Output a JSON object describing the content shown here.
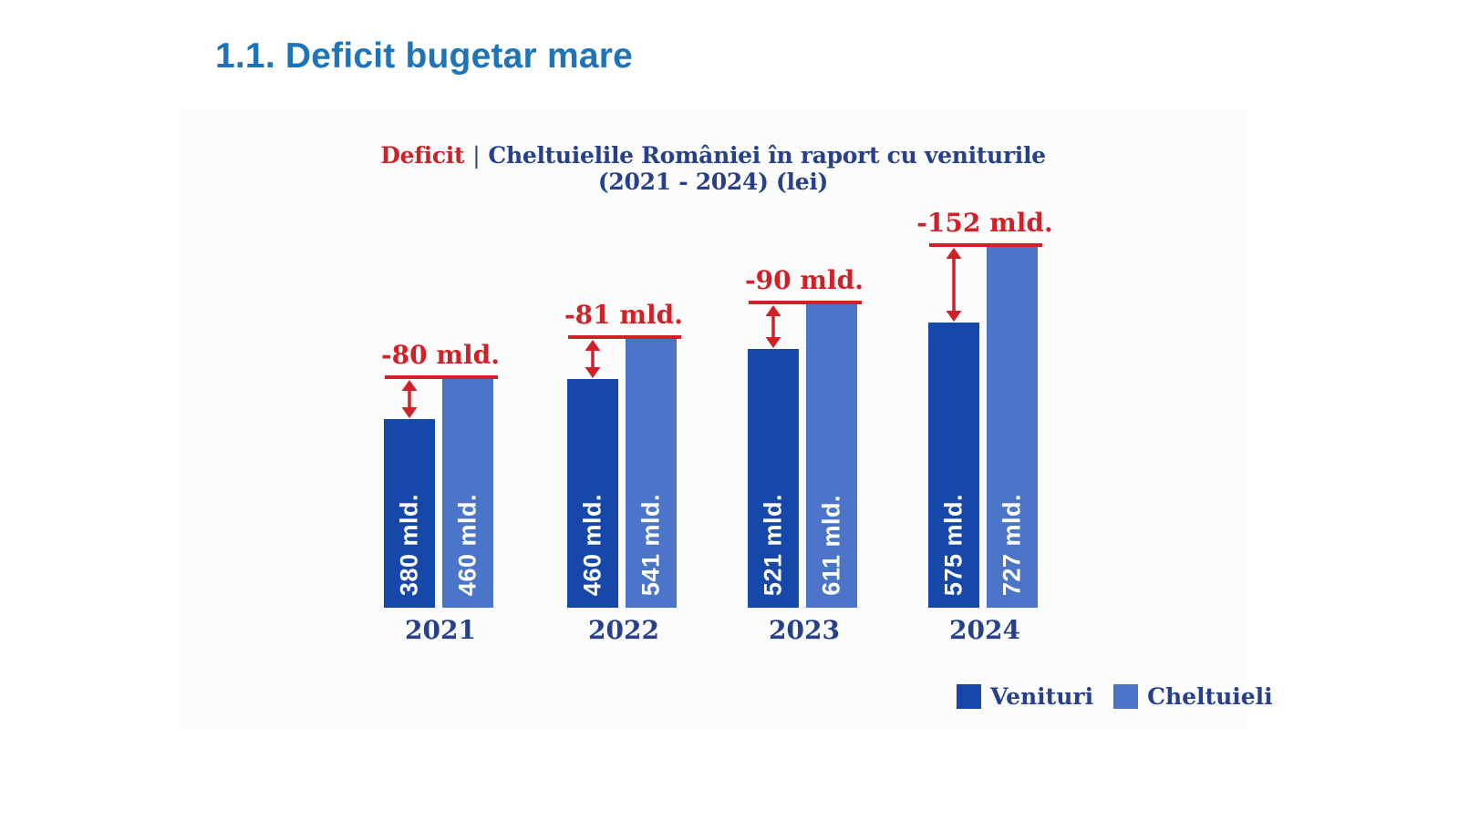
{
  "page": {
    "heading": "1.1. Deficit bugetar mare"
  },
  "chart_data": {
    "type": "bar",
    "title": {
      "prefix": "Deficit",
      "separator": "|",
      "main": "Cheltuielile României în raport cu veniturile",
      "subtitle": "(2021 - 2024) (lei)"
    },
    "categories": [
      "2021",
      "2022",
      "2023",
      "2024"
    ],
    "series": [
      {
        "name": "Venituri",
        "values": [
          380,
          460,
          521,
          575
        ],
        "color": "#1548a8"
      },
      {
        "name": "Cheltuieli",
        "values": [
          460,
          541,
          611,
          727
        ],
        "color": "#4a75c9"
      }
    ],
    "bar_value_labels": [
      [
        "380 mld.",
        "460 mld."
      ],
      [
        "460 mld.",
        "541 mld."
      ],
      [
        "521 mld.",
        "611 mld."
      ],
      [
        "575 mld.",
        "727 mld."
      ]
    ],
    "deficit_values": [
      -80,
      -81,
      -90,
      -152
    ],
    "deficit_annotations": [
      "-80 mld.",
      "-81 mld.",
      "-90 mld.",
      "-152 mld."
    ],
    "unit": "mld. lei",
    "legend": {
      "position": "bottom-right",
      "items": [
        {
          "label": "Venituri",
          "color": "#1548a8"
        },
        {
          "label": "Cheltuieli",
          "color": "#4a75c9"
        }
      ]
    },
    "layout": {
      "grid": false,
      "y_axis_visible": false,
      "x_axis_visible": false
    },
    "colors": {
      "heading_blue": "#1e74b9",
      "title_navy": "#27408b",
      "deficit_red": "#cf2127",
      "bar_label_text": "#ffffff",
      "panel_background": "#fcfcfd"
    }
  }
}
